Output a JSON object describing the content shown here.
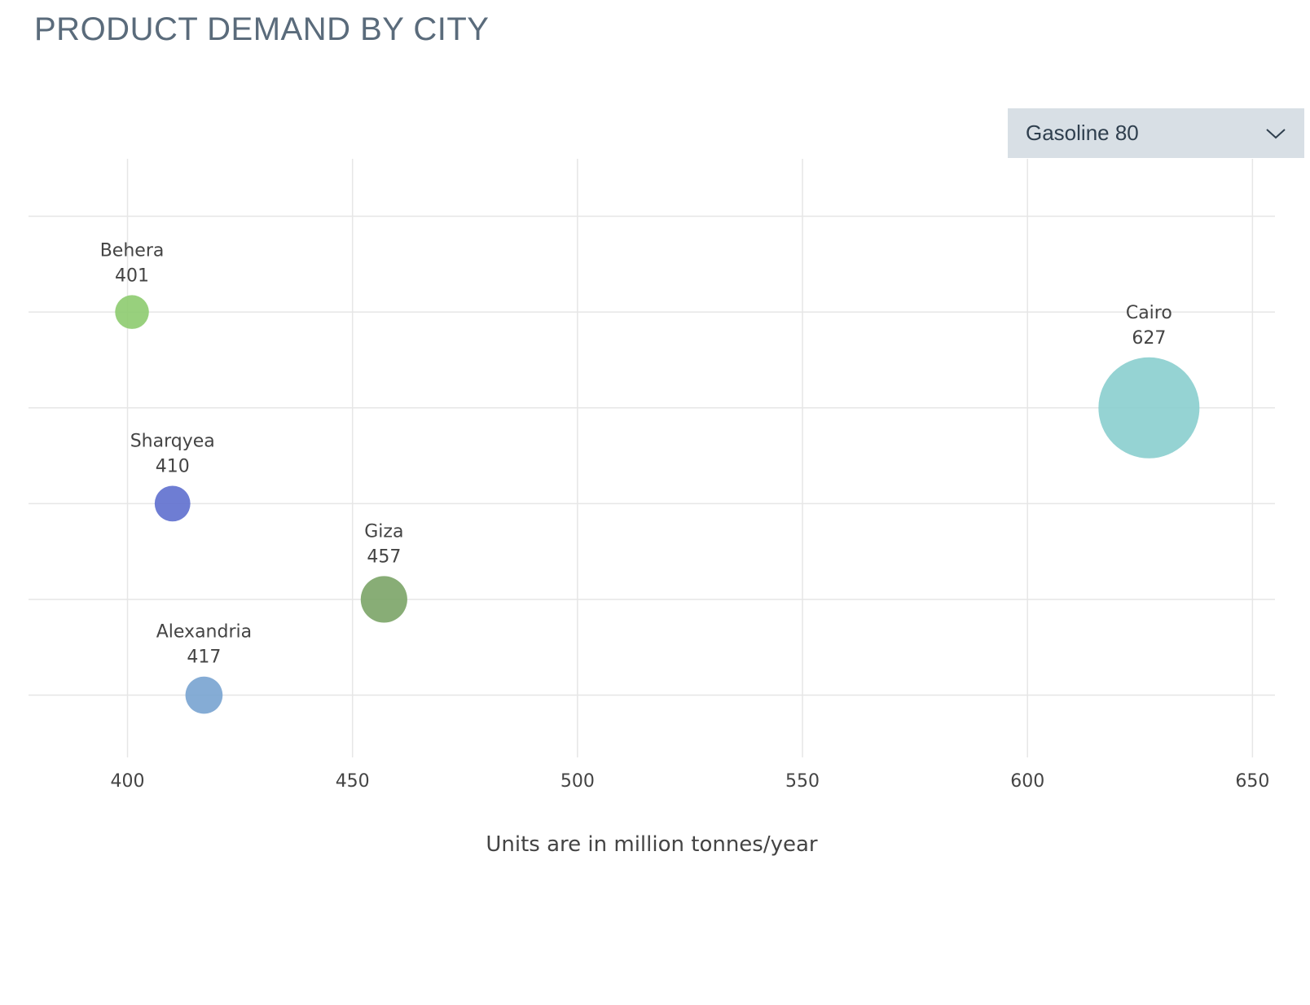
{
  "page": {
    "title": "PRODUCT DEMAND BY CITY"
  },
  "dropdown": {
    "selected": "Gasoline 80",
    "icon": "chevron-down-icon"
  },
  "chart_data": {
    "type": "scatter",
    "title": "PRODUCT DEMAND BY CITY",
    "xlabel": "Units are in million tonnes/year",
    "ylabel": "",
    "xlim": [
      378,
      655
    ],
    "xticks": [
      400,
      450,
      500,
      550,
      600,
      650
    ],
    "ylim": [
      0.35,
      6.6
    ],
    "y_gridlines": [
      1,
      2,
      3,
      4,
      5,
      6
    ],
    "grid": true,
    "points": [
      {
        "city": "Behera",
        "x": 401,
        "y": 5,
        "color": "#8fcc72"
      },
      {
        "city": "Cairo",
        "x": 627,
        "y": 4,
        "color": "#8ccfcf"
      },
      {
        "city": "Sharqyea",
        "x": 410,
        "y": 3,
        "color": "#6272cf"
      },
      {
        "city": "Giza",
        "x": 457,
        "y": 2,
        "color": "#7ea66a"
      },
      {
        "city": "Alexandria",
        "x": 417,
        "y": 1,
        "color": "#7ba5d1"
      }
    ]
  }
}
